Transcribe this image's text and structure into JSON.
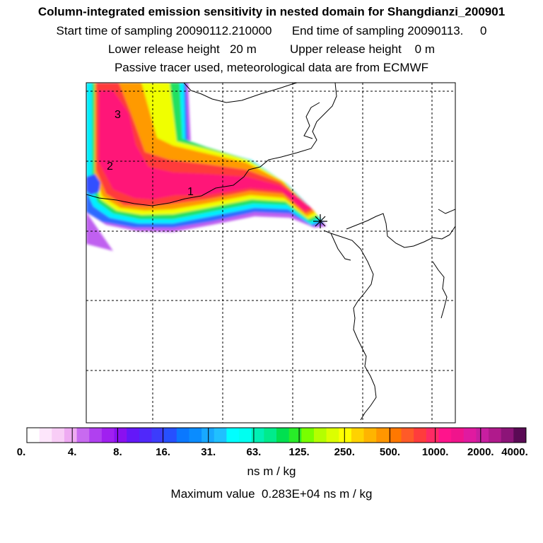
{
  "header": {
    "title": "Column-integrated emission sensitivity in nested domain for Shangdianzi_200901",
    "line2": "Start time of sampling 20090112.210000      End time of sampling 20090113.     0",
    "line3": "Lower release height   20 m          Upper release height    0 m",
    "line4": "Passive tracer used, meteorological data are from ECMWF"
  },
  "map": {
    "contour_labels": [
      "1",
      "2",
      "3"
    ],
    "marker": "receptor-star"
  },
  "colorbar": {
    "tick_labels": [
      "0.",
      "4.",
      "8.",
      "16.",
      "31.",
      "63.",
      "125.",
      "250.",
      "500.",
      "1000.",
      "2000.",
      "4000."
    ],
    "colors": [
      "#ffffff",
      "#fde6fb",
      "#f8cdf6",
      "#eeaaf2",
      "#c86af0",
      "#b040f0",
      "#a020f0",
      "#8a10f0",
      "#6418f8",
      "#5028fa",
      "#3c3cfc",
      "#2650ff",
      "#0a78ff",
      "#0a8cff",
      "#18a8ff",
      "#20c0ff",
      "#00ffff",
      "#00fff0",
      "#00f0b4",
      "#00eb8c",
      "#00e050",
      "#28ec28",
      "#78ff00",
      "#b4ff00",
      "#dcff00",
      "#ffff00",
      "#ffd200",
      "#ffb400",
      "#ff9600",
      "#ff7800",
      "#ff5a28",
      "#ff3c3c",
      "#ff2a64",
      "#ff148c",
      "#f0148c",
      "#e01aa0",
      "#c81ea0",
      "#b01a8c",
      "#8c1478",
      "#5a0a55"
    ],
    "units": "ns m / kg"
  },
  "footer": {
    "max_value": "Maximum value  0.283E+04 ns m / kg"
  }
}
